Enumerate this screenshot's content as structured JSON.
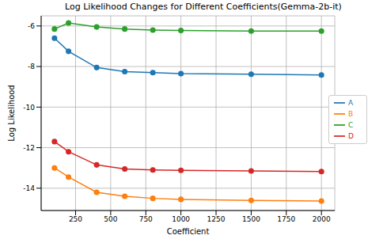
{
  "chart_data": {
    "type": "line",
    "title": "Log Likelihood Changes for Different Coefficients(Gemma-2b-it)",
    "x_label": "Coefficient",
    "y_label": "Log Likelihood",
    "x": [
      100,
      200,
      400,
      600,
      800,
      1000,
      1500,
      2000
    ],
    "series": [
      {
        "name": "A",
        "color": "#1f77b4",
        "marker": "o",
        "values": [
          -6.6,
          -7.25,
          -8.05,
          -8.25,
          -8.3,
          -8.35,
          -8.38,
          -8.42
        ]
      },
      {
        "name": "B",
        "color": "#ff7f0e",
        "marker": "o",
        "values": [
          -13.0,
          -13.45,
          -14.2,
          -14.4,
          -14.5,
          -14.55,
          -14.6,
          -14.63
        ]
      },
      {
        "name": "C",
        "color": "#2ca02c",
        "marker": "o",
        "values": [
          -6.15,
          -5.85,
          -6.05,
          -6.15,
          -6.2,
          -6.22,
          -6.25,
          -6.25
        ]
      },
      {
        "name": "D",
        "color": "#d62728",
        "marker": "o",
        "values": [
          -11.7,
          -12.2,
          -12.85,
          -13.05,
          -13.1,
          -13.12,
          -13.15,
          -13.18
        ]
      }
    ],
    "xlim": [
      5,
      2095
    ],
    "ylim": [
      -15.1,
      -5.5
    ],
    "xticks": [
      250,
      500,
      750,
      1000,
      1250,
      1500,
      1750,
      2000
    ],
    "yticks": [
      -14,
      -12,
      -10,
      -8,
      -6
    ],
    "grid": true,
    "legend": "right"
  }
}
